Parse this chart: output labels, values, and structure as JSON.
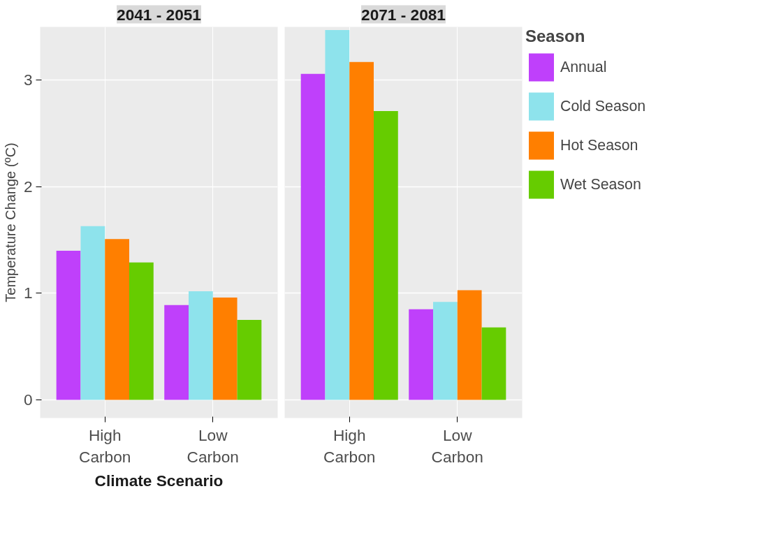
{
  "chart_data": [
    {
      "type": "bar",
      "title": "2041 - 2051",
      "ylabel": "Temperature Change (ºC)",
      "xlabel": "Climate Scenario",
      "categories": [
        "High Carbon",
        "Low Carbon"
      ],
      "ylim": [
        -0.17,
        3.5
      ],
      "yticks": [
        0,
        1,
        2,
        3
      ],
      "grid": true,
      "series": [
        {
          "color": "#bf40fb",
          "values": [
            1.4,
            0.89
          ]
        },
        {
          "color": "#8ee3ec",
          "values": [
            1.63,
            1.02
          ]
        },
        {
          "color": "#ff7f00",
          "values": [
            1.51,
            0.96
          ]
        },
        {
          "color": "#66cc00",
          "values": [
            1.29,
            0.75
          ]
        }
      ]
    },
    {
      "type": "bar",
      "title": "2071 - 2081",
      "legend_title": "Season",
      "legend": "right",
      "tick_labels": "x",
      "categories": [
        "High Carbon",
        "Low Carbon"
      ],
      "ylim": [
        -0.17,
        3.5
      ],
      "yticks": [
        0,
        1,
        2,
        3
      ],
      "grid": true,
      "series": [
        {
          "name": "Annual",
          "color": "#bf40fb",
          "values": [
            3.06,
            0.85
          ]
        },
        {
          "name": "Cold Season",
          "color": "#8ee3ec",
          "values": [
            3.47,
            0.92
          ]
        },
        {
          "name": "Hot Season",
          "color": "#ff7f00",
          "values": [
            3.17,
            1.03
          ]
        },
        {
          "name": "Wet Season",
          "color": "#66cc00",
          "values": [
            2.71,
            0.68
          ]
        }
      ]
    }
  ]
}
